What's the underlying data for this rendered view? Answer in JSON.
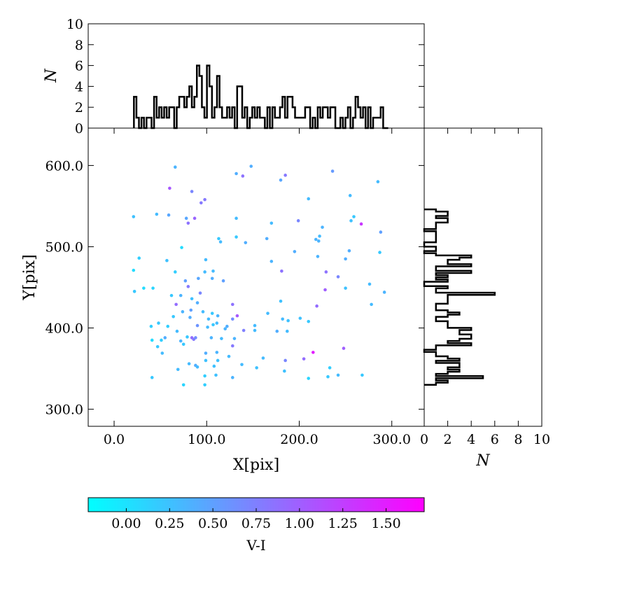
{
  "chart_data": [
    {
      "type": "scatter",
      "xlabel": "X[pix]",
      "ylabel": "Y[pix]",
      "xlim": [
        -28,
        335
      ],
      "ylim": [
        279,
        646
      ],
      "x_ticks": [
        "0.0",
        "100.0",
        "200.0",
        "300.0"
      ],
      "y_ticks": [
        "300.0",
        "400.0",
        "500.0",
        "600.0"
      ],
      "x_tick_values": [
        0,
        100,
        200,
        300
      ],
      "y_tick_values": [
        300,
        400,
        500,
        600
      ],
      "colormap": "cool",
      "color_label": "V-I",
      "color_range": [
        -0.22,
        1.72
      ],
      "cbar_ticks": [
        "0.00",
        "0.25",
        "0.50",
        "0.75",
        "1.00",
        "1.25",
        "1.50"
      ],
      "cbar_tick_values": [
        0,
        0.25,
        0.5,
        0.75,
        1.0,
        1.25,
        1.5
      ],
      "points": [
        [
          66,
          598,
          0.35
        ],
        [
          132,
          590,
          0.4
        ],
        [
          148,
          599,
          0.4
        ],
        [
          139,
          587,
          0.85
        ],
        [
          185,
          588,
          0.8
        ],
        [
          180,
          582,
          0.45
        ],
        [
          236,
          593,
          0.55
        ],
        [
          285,
          580,
          0.3
        ],
        [
          60,
          572,
          1.05
        ],
        [
          84,
          568,
          0.7
        ],
        [
          98,
          558,
          0.8
        ],
        [
          94,
          554,
          0.8
        ],
        [
          210,
          559,
          0.3
        ],
        [
          255,
          563,
          0.3
        ],
        [
          21,
          537,
          0.25
        ],
        [
          46,
          540,
          0.3
        ],
        [
          59,
          539,
          0.45
        ],
        [
          78,
          535,
          0.45
        ],
        [
          87,
          535,
          0.95
        ],
        [
          80,
          529,
          0.85
        ],
        [
          132,
          535,
          0.3
        ],
        [
          170,
          529,
          0.3
        ],
        [
          199,
          532,
          0.7
        ],
        [
          256,
          532,
          0.25
        ],
        [
          259,
          537,
          0.2
        ],
        [
          267,
          528,
          1.3
        ],
        [
          225,
          524,
          0.35
        ],
        [
          288,
          518,
          0.5
        ],
        [
          113,
          510,
          0.2
        ],
        [
          115,
          506,
          0.3
        ],
        [
          132,
          512,
          0.2
        ],
        [
          142,
          505,
          0.4
        ],
        [
          165,
          510,
          0.4
        ],
        [
          218,
          509,
          0.35
        ],
        [
          222,
          513,
          0.3
        ],
        [
          221,
          507,
          0.35
        ],
        [
          73,
          499,
          0.05
        ],
        [
          195,
          494,
          0.4
        ],
        [
          254,
          495,
          0.4
        ],
        [
          287,
          493,
          0.2
        ],
        [
          27,
          486,
          0.15
        ],
        [
          57,
          483,
          0.25
        ],
        [
          170,
          482,
          0.35
        ],
        [
          220,
          488,
          0.35
        ],
        [
          250,
          485,
          0.4
        ],
        [
          21,
          471,
          0.05
        ],
        [
          66,
          469,
          0.15
        ],
        [
          98,
          469,
          0.3
        ],
        [
          107,
          470,
          0.3
        ],
        [
          181,
          470,
          0.85
        ],
        [
          229,
          469,
          0.85
        ],
        [
          242,
          463,
          0.7
        ],
        [
          99,
          484,
          0.3
        ],
        [
          77,
          458,
          0.5
        ],
        [
          91,
          461,
          0.45
        ],
        [
          106,
          461,
          0.4
        ],
        [
          118,
          458,
          0.5
        ],
        [
          22,
          445,
          0.2
        ],
        [
          32,
          449,
          0.05
        ],
        [
          42,
          449,
          0.1
        ],
        [
          80,
          451,
          0.8
        ],
        [
          228,
          447,
          1.0
        ],
        [
          250,
          449,
          0.25
        ],
        [
          276,
          454,
          0.3
        ],
        [
          292,
          444,
          0.35
        ],
        [
          62,
          440,
          0.2
        ],
        [
          72,
          440,
          0.35
        ],
        [
          84,
          436,
          0.25
        ],
        [
          93,
          443,
          0.7
        ],
        [
          67,
          429,
          0.9
        ],
        [
          90,
          431,
          0.4
        ],
        [
          128,
          429,
          0.85
        ],
        [
          180,
          433,
          0.25
        ],
        [
          219,
          427,
          0.9
        ],
        [
          278,
          429,
          0.3
        ],
        [
          74,
          420,
          0.35
        ],
        [
          83,
          422,
          0.5
        ],
        [
          96,
          420,
          0.3
        ],
        [
          106,
          418,
          0.2
        ],
        [
          166,
          418,
          0.3
        ],
        [
          64,
          414,
          0.2
        ],
        [
          82,
          413,
          0.4
        ],
        [
          112,
          415,
          0.35
        ],
        [
          128,
          411,
          0.65
        ],
        [
          133,
          415,
          1.05
        ],
        [
          182,
          411,
          0.3
        ],
        [
          188,
          409,
          0.25
        ],
        [
          201,
          412,
          0.25
        ],
        [
          210,
          408,
          0.2
        ],
        [
          102,
          411,
          0.3
        ],
        [
          107,
          404,
          0.2
        ],
        [
          111,
          406,
          0.3
        ],
        [
          122,
          402,
          0.4
        ],
        [
          140,
          397,
          0.75
        ],
        [
          152,
          403,
          0.3
        ],
        [
          40,
          402,
          0.15
        ],
        [
          48,
          406,
          0.2
        ],
        [
          58,
          402,
          0.15
        ],
        [
          68,
          396,
          0.3
        ],
        [
          90,
          403,
          0.6
        ],
        [
          101,
          401,
          0.3
        ],
        [
          120,
          399,
          0.35
        ],
        [
          152,
          397,
          0.3
        ],
        [
          176,
          396,
          0.4
        ],
        [
          187,
          396,
          0.3
        ],
        [
          41,
          385,
          0.05
        ],
        [
          51,
          385,
          0.15
        ],
        [
          55,
          388,
          0.4
        ],
        [
          72,
          384,
          0.35
        ],
        [
          79,
          389,
          0.2
        ],
        [
          84,
          388,
          0.9
        ],
        [
          86,
          386,
          0.8
        ],
        [
          88,
          388,
          0.65
        ],
        [
          105,
          388,
          0.35
        ],
        [
          116,
          387,
          0.3
        ],
        [
          130,
          387,
          0.35
        ],
        [
          47,
          377,
          0.2
        ],
        [
          75,
          380,
          0.2
        ],
        [
          52,
          369,
          0.3
        ],
        [
          99,
          369,
          0.4
        ],
        [
          111,
          370,
          0.35
        ],
        [
          124,
          365,
          0.3
        ],
        [
          128,
          378,
          0.8
        ],
        [
          99,
          360,
          0.25
        ],
        [
          81,
          356,
          0.3
        ],
        [
          88,
          354,
          0.4
        ],
        [
          90,
          352,
          0.3
        ],
        [
          112,
          360,
          0.25
        ],
        [
          108,
          353,
          0.25
        ],
        [
          138,
          355,
          0.3
        ],
        [
          161,
          363,
          0.3
        ],
        [
          185,
          360,
          0.7
        ],
        [
          205,
          362,
          0.9
        ],
        [
          215,
          370,
          1.5
        ],
        [
          248,
          375,
          1.0
        ],
        [
          233,
          351,
          0.15
        ],
        [
          154,
          351,
          0.25
        ],
        [
          184,
          347,
          0.25
        ],
        [
          69,
          349,
          0.3
        ],
        [
          41,
          339,
          0.2
        ],
        [
          75,
          330,
          0.1
        ],
        [
          98,
          341,
          0.15
        ],
        [
          110,
          342,
          0.25
        ],
        [
          128,
          339,
          0.35
        ],
        [
          98,
          330,
          0.15
        ],
        [
          210,
          338,
          0.1
        ],
        [
          231,
          340,
          0.2
        ],
        [
          242,
          342,
          0.3
        ],
        [
          268,
          342,
          0.2
        ]
      ]
    },
    {
      "type": "bar",
      "orientation": "vertical",
      "role": "X histogram",
      "ylabel": "N",
      "ylim": [
        0,
        10
      ],
      "y_ticks": [
        "0",
        "2",
        "4",
        "6",
        "8",
        "10"
      ],
      "y_tick_values": [
        0,
        2,
        4,
        6,
        8,
        10
      ],
      "bin_start": 21.4,
      "bin_width": 2.72,
      "values": [
        3,
        1,
        0,
        1,
        0,
        1,
        1,
        0,
        3,
        1,
        2,
        1,
        2,
        1,
        2,
        2,
        0,
        2,
        3,
        3,
        2,
        3,
        4,
        2,
        3,
        6,
        5,
        2,
        1,
        6,
        4,
        1,
        2,
        5,
        2,
        1,
        1,
        2,
        1,
        2,
        0,
        4,
        4,
        1,
        2,
        0,
        1,
        2,
        1,
        2,
        1,
        1,
        0,
        2,
        0,
        2,
        1,
        1,
        2,
        3,
        1,
        3,
        3,
        2,
        1,
        1,
        1,
        1,
        2,
        2,
        0,
        1,
        0,
        2,
        1,
        2,
        2,
        1,
        2,
        2,
        0,
        0,
        1,
        0,
        1,
        2,
        0,
        1,
        3,
        2,
        1,
        2,
        0,
        2,
        0,
        1,
        1,
        1,
        2,
        0,
        0
      ]
    },
    {
      "type": "bar",
      "orientation": "horizontal",
      "role": "Y histogram",
      "xlabel": "N",
      "xlim": [
        0,
        10
      ],
      "x_ticks": [
        "0",
        "2",
        "4",
        "6",
        "8",
        "10"
      ],
      "x_tick_values": [
        0,
        2,
        4,
        6,
        8,
        10
      ],
      "bin_start": 330,
      "bin_width": 2.7,
      "values": [
        1,
        2,
        1,
        5,
        1,
        2,
        3,
        2,
        3,
        3,
        1,
        3,
        2,
        1,
        1,
        0,
        1,
        1,
        4,
        2,
        3,
        4,
        4,
        3,
        3,
        4,
        2,
        2,
        2,
        1,
        1,
        2,
        3,
        2,
        1,
        1,
        1,
        2,
        2,
        2,
        2,
        6,
        1,
        1,
        2,
        0,
        0,
        2,
        1,
        2,
        1,
        4,
        1,
        1,
        4,
        2,
        2,
        3,
        4,
        1,
        0,
        1,
        1,
        0,
        0,
        1,
        1,
        1,
        1,
        1,
        0,
        1,
        1,
        1,
        2,
        2,
        1,
        2,
        2,
        1
      ]
    }
  ]
}
